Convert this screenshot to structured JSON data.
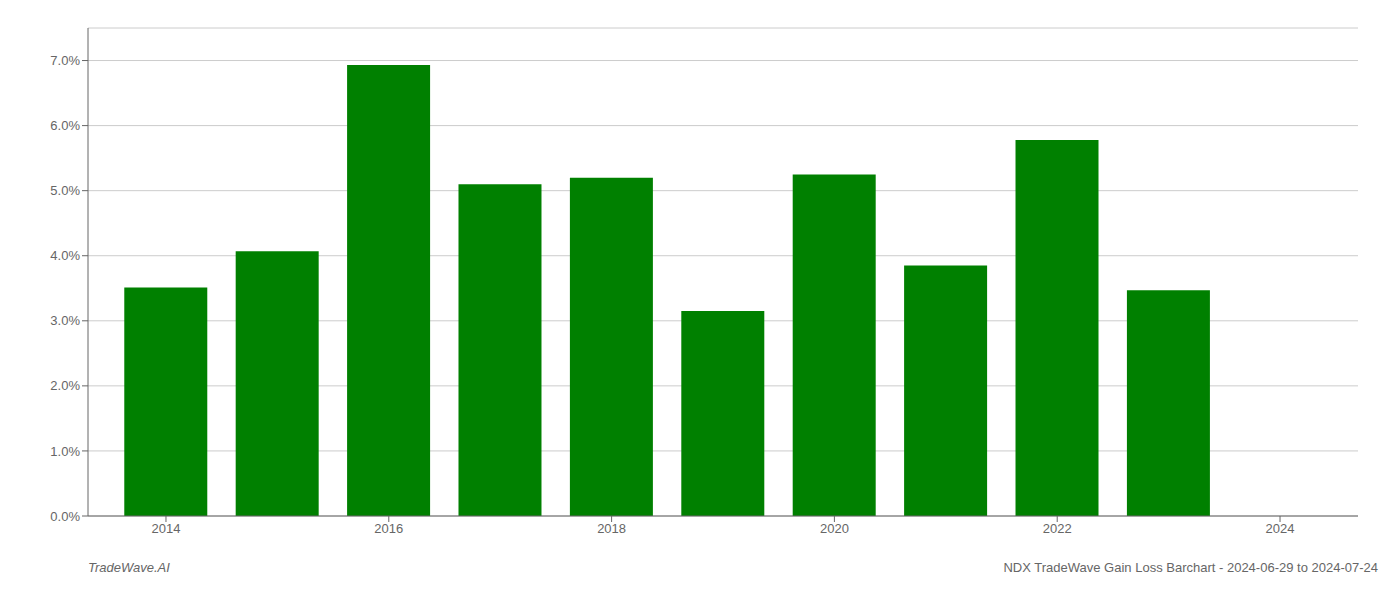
{
  "chart_data": {
    "type": "bar",
    "x": [
      2014,
      2015,
      2016,
      2017,
      2018,
      2019,
      2020,
      2021,
      2022,
      2023
    ],
    "values": [
      0.0351,
      0.0407,
      0.0693,
      0.051,
      0.052,
      0.0315,
      0.0525,
      0.0385,
      0.0578,
      0.0347
    ],
    "color": "#008000",
    "xlim": [
      2013.3,
      2024.7
    ],
    "xticks": [
      2014,
      2016,
      2018,
      2020,
      2022,
      2024
    ],
    "ylim": [
      0,
      0.075
    ],
    "yticks": [
      {
        "value": 0.0,
        "label": "0.0%"
      },
      {
        "value": 0.01,
        "label": "1.0%"
      },
      {
        "value": 0.02,
        "label": "2.0%"
      },
      {
        "value": 0.03,
        "label": "3.0%"
      },
      {
        "value": 0.04,
        "label": "4.0%"
      },
      {
        "value": 0.05,
        "label": "5.0%"
      },
      {
        "value": 0.06,
        "label": "6.0%"
      },
      {
        "value": 0.07,
        "label": "7.0%"
      }
    ],
    "grid": true,
    "annotations": [
      "TradeWave.AI",
      "NDX TradeWave Gain Loss Barchart - 2024-06-29 to 2024-07-24"
    ]
  }
}
